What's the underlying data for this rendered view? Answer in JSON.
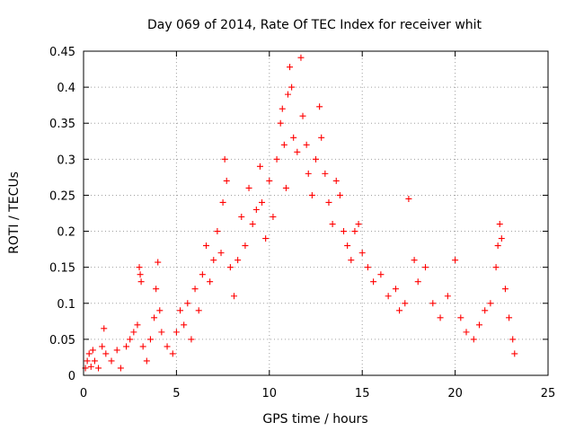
{
  "chart_data": {
    "type": "scatter",
    "title": "Day 069 of 2014, Rate Of TEC Index for receiver whit",
    "xlabel": "GPS time / hours",
    "ylabel": "ROTI / TECUs",
    "xlim": [
      0,
      25
    ],
    "ylim": [
      0,
      0.45
    ],
    "xticks": [
      0,
      5,
      10,
      15,
      20,
      25
    ],
    "yticks": [
      0,
      0.05,
      0.1,
      0.15,
      0.2,
      0.25,
      0.3,
      0.35,
      0.4,
      0.45
    ],
    "xtick_labels": [
      "0",
      "5",
      "10",
      "15",
      "20",
      "25"
    ],
    "ytick_labels": [
      "0",
      "0.05",
      "0.1",
      "0.15",
      "0.2",
      "0.25",
      "0.3",
      "0.35",
      "0.4",
      "0.45"
    ],
    "grid": true,
    "marker": "+",
    "series": [
      {
        "name": "ROTI",
        "color": "#ff0000",
        "points": [
          [
            0.1,
            0.01
          ],
          [
            0.2,
            0.02
          ],
          [
            0.3,
            0.03
          ],
          [
            0.4,
            0.012
          ],
          [
            0.5,
            0.035
          ],
          [
            0.6,
            0.02
          ],
          [
            0.8,
            0.01
          ],
          [
            1.0,
            0.04
          ],
          [
            1.1,
            0.065
          ],
          [
            1.2,
            0.03
          ],
          [
            1.5,
            0.02
          ],
          [
            1.8,
            0.035
          ],
          [
            2.0,
            0.01
          ],
          [
            2.3,
            0.04
          ],
          [
            2.5,
            0.05
          ],
          [
            2.7,
            0.06
          ],
          [
            2.9,
            0.07
          ],
          [
            3.0,
            0.15
          ],
          [
            3.05,
            0.14
          ],
          [
            3.1,
            0.13
          ],
          [
            3.2,
            0.04
          ],
          [
            3.4,
            0.02
          ],
          [
            3.6,
            0.05
          ],
          [
            3.8,
            0.08
          ],
          [
            3.9,
            0.12
          ],
          [
            4.0,
            0.157
          ],
          [
            4.1,
            0.09
          ],
          [
            4.2,
            0.06
          ],
          [
            4.5,
            0.04
          ],
          [
            4.8,
            0.03
          ],
          [
            5.0,
            0.06
          ],
          [
            5.2,
            0.09
          ],
          [
            5.4,
            0.07
          ],
          [
            5.6,
            0.1
          ],
          [
            5.8,
            0.05
          ],
          [
            6.0,
            0.12
          ],
          [
            6.2,
            0.09
          ],
          [
            6.4,
            0.14
          ],
          [
            6.6,
            0.18
          ],
          [
            6.8,
            0.13
          ],
          [
            7.0,
            0.16
          ],
          [
            7.2,
            0.2
          ],
          [
            7.4,
            0.17
          ],
          [
            7.5,
            0.24
          ],
          [
            7.6,
            0.3
          ],
          [
            7.7,
            0.27
          ],
          [
            7.9,
            0.15
          ],
          [
            8.1,
            0.11
          ],
          [
            8.3,
            0.16
          ],
          [
            8.5,
            0.22
          ],
          [
            8.7,
            0.18
          ],
          [
            8.9,
            0.26
          ],
          [
            9.1,
            0.21
          ],
          [
            9.3,
            0.23
          ],
          [
            9.5,
            0.29
          ],
          [
            9.6,
            0.24
          ],
          [
            9.8,
            0.19
          ],
          [
            10.0,
            0.27
          ],
          [
            10.2,
            0.22
          ],
          [
            10.4,
            0.3
          ],
          [
            10.6,
            0.35
          ],
          [
            10.7,
            0.37
          ],
          [
            10.8,
            0.32
          ],
          [
            10.9,
            0.26
          ],
          [
            11.0,
            0.39
          ],
          [
            11.1,
            0.428
          ],
          [
            11.2,
            0.4
          ],
          [
            11.3,
            0.33
          ],
          [
            11.5,
            0.31
          ],
          [
            11.7,
            0.441
          ],
          [
            11.8,
            0.36
          ],
          [
            12.0,
            0.32
          ],
          [
            12.1,
            0.28
          ],
          [
            12.3,
            0.25
          ],
          [
            12.5,
            0.3
          ],
          [
            12.7,
            0.373
          ],
          [
            12.8,
            0.33
          ],
          [
            13.0,
            0.28
          ],
          [
            13.2,
            0.24
          ],
          [
            13.4,
            0.21
          ],
          [
            13.6,
            0.27
          ],
          [
            13.8,
            0.25
          ],
          [
            14.0,
            0.2
          ],
          [
            14.2,
            0.18
          ],
          [
            14.4,
            0.16
          ],
          [
            14.6,
            0.2
          ],
          [
            14.8,
            0.21
          ],
          [
            15.0,
            0.17
          ],
          [
            15.3,
            0.15
          ],
          [
            15.6,
            0.13
          ],
          [
            16.0,
            0.14
          ],
          [
            16.4,
            0.11
          ],
          [
            16.8,
            0.12
          ],
          [
            17.0,
            0.09
          ],
          [
            17.3,
            0.1
          ],
          [
            17.5,
            0.245
          ],
          [
            17.8,
            0.16
          ],
          [
            18.0,
            0.13
          ],
          [
            18.4,
            0.15
          ],
          [
            18.8,
            0.1
          ],
          [
            19.2,
            0.08
          ],
          [
            19.6,
            0.11
          ],
          [
            20.0,
            0.16
          ],
          [
            20.3,
            0.08
          ],
          [
            20.6,
            0.06
          ],
          [
            21.0,
            0.05
          ],
          [
            21.3,
            0.07
          ],
          [
            21.6,
            0.09
          ],
          [
            21.9,
            0.1
          ],
          [
            22.2,
            0.15
          ],
          [
            22.3,
            0.18
          ],
          [
            22.4,
            0.21
          ],
          [
            22.5,
            0.19
          ],
          [
            22.7,
            0.12
          ],
          [
            22.9,
            0.08
          ],
          [
            23.1,
            0.05
          ],
          [
            23.2,
            0.03
          ]
        ]
      }
    ]
  }
}
